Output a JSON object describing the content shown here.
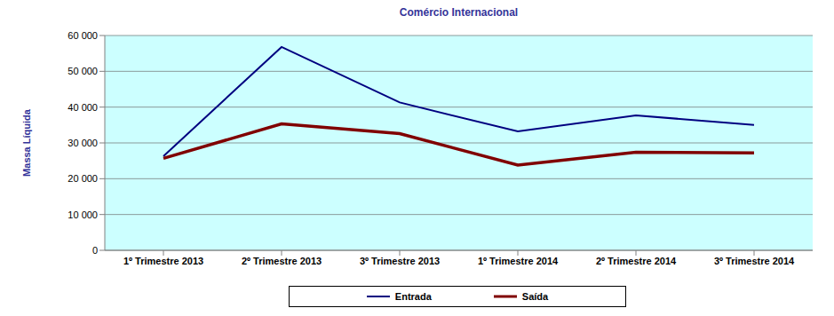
{
  "chart_data": {
    "type": "line",
    "title": "Comércio Internacional",
    "ylabel": "Massa Líquida",
    "categories": [
      "1º Trimestre 2013",
      "2º Trimestre 2013",
      "3º Trimestre 2013",
      "1º Trimestre 2014",
      "2º Trimestre 2014",
      "3º Trimestre 2014"
    ],
    "series": [
      {
        "name": "Entrada",
        "color": "#000080",
        "values": [
          26300,
          56800,
          41300,
          33200,
          37700,
          35000
        ]
      },
      {
        "name": "Saída",
        "color": "#800000",
        "values": [
          25700,
          35300,
          32600,
          23800,
          27400,
          27200
        ]
      }
    ],
    "ylim": [
      0,
      60000
    ],
    "yticks": [
      0,
      {
        "value": 10000,
        "label": "10 000"
      },
      {
        "value": 20000,
        "label": "20 000"
      },
      {
        "value": 30000,
        "label": "30 000"
      },
      {
        "value": 40000,
        "label": "40 000"
      },
      {
        "value": 50000,
        "label": "50 000"
      },
      {
        "value": 60000,
        "label": "60 000"
      }
    ],
    "grid": true,
    "legend": "bottom"
  }
}
